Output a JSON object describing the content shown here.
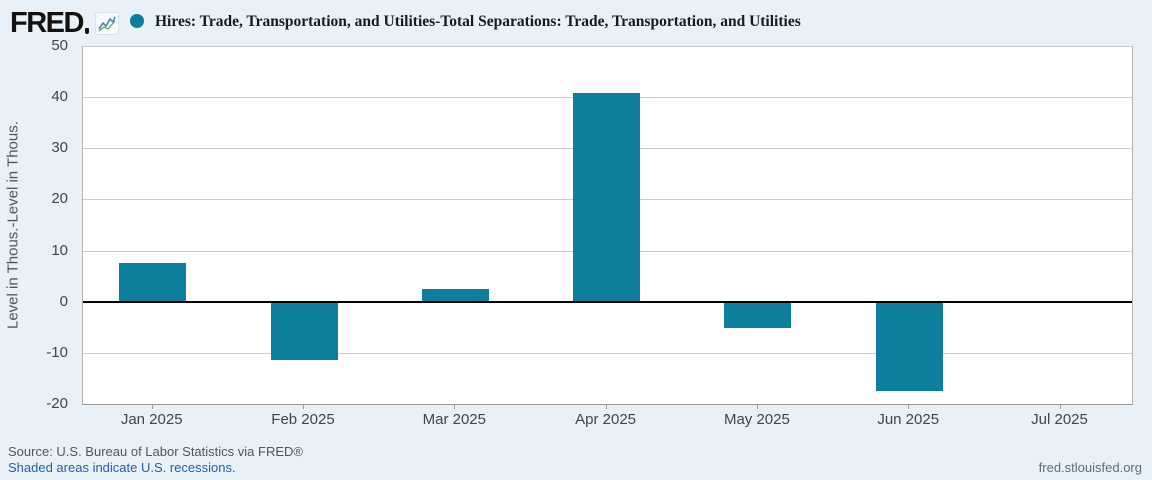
{
  "header": {
    "logo_text": "FRED",
    "series_title": "Hires: Trade, Transportation, and Utilities-Total Separations: Trade, Transportation, and Utilities",
    "series_color": "#0d7f9c"
  },
  "chart_data": {
    "type": "bar",
    "title": "Hires: Trade, Transportation, and Utilities-Total Separations: Trade, Transportation, and Utilities",
    "categories": [
      "Jan 2025",
      "Feb 2025",
      "Mar 2025",
      "Apr 2025",
      "May 2025",
      "Jun 2025",
      "Jul 2025"
    ],
    "values": [
      7.6,
      -11.4,
      2.5,
      40.9,
      -5.1,
      -17.4,
      null
    ],
    "xlabel": "",
    "ylabel": "Level in Thous.-Level in Thous.",
    "ylim": [
      -20,
      50
    ],
    "yticks": [
      50,
      40,
      30,
      20,
      10,
      0,
      -10,
      -20
    ],
    "bar_color": "#0d7f9c",
    "grid": "horizontal-only",
    "zero_line": true,
    "legend_position": "top"
  },
  "footer": {
    "source_line": "Source: U.S. Bureau of Labor Statistics via FRED®",
    "recession_note": "Shaded areas indicate U.S. recessions.",
    "site_link": "fred.stlouisfed.org"
  },
  "colors": {
    "background": "#e8f1f8",
    "plot_background": "#ffffff",
    "gridline": "#cccccc",
    "zero_line": "#000000",
    "axis_text": "#444444",
    "link_text": "#2b5d9b"
  }
}
